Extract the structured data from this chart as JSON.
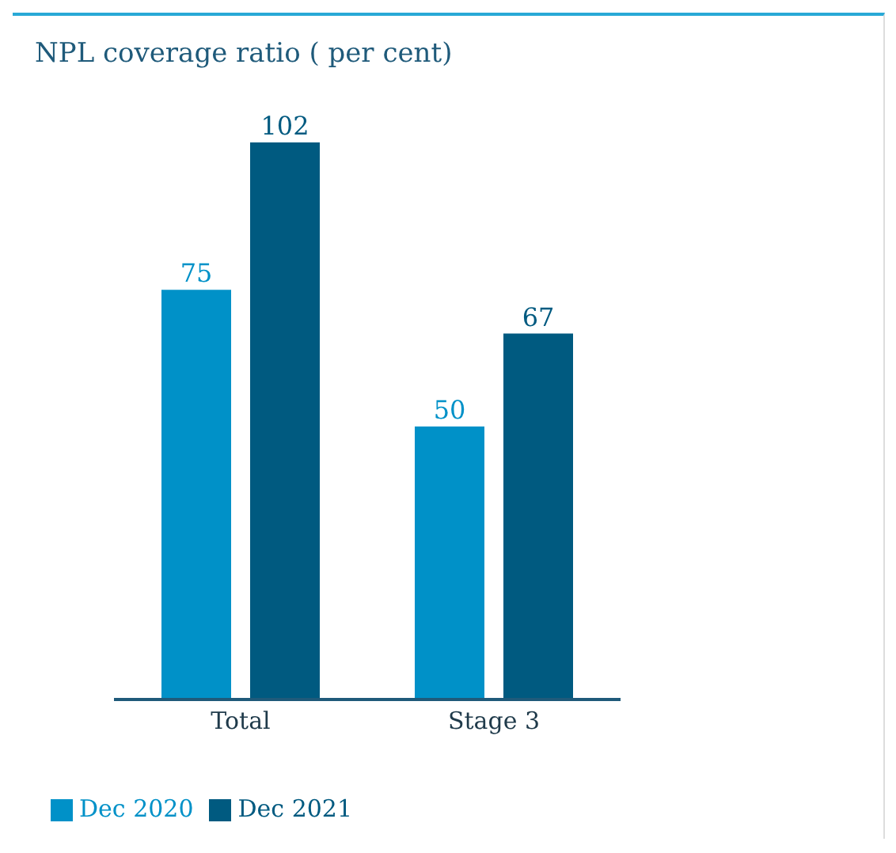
{
  "chart_data": {
    "type": "bar",
    "title": "NPL coverage ratio ( per cent)",
    "categories": [
      "Total",
      "Stage 3"
    ],
    "series": [
      {
        "name": "Dec 2020",
        "color": "#0091c8",
        "values": [
          75,
          50
        ]
      },
      {
        "name": "Dec 2021",
        "color": "#005a80",
        "values": [
          102,
          67
        ]
      }
    ],
    "data_labels": true,
    "legend": "bottom left",
    "grid": false
  }
}
